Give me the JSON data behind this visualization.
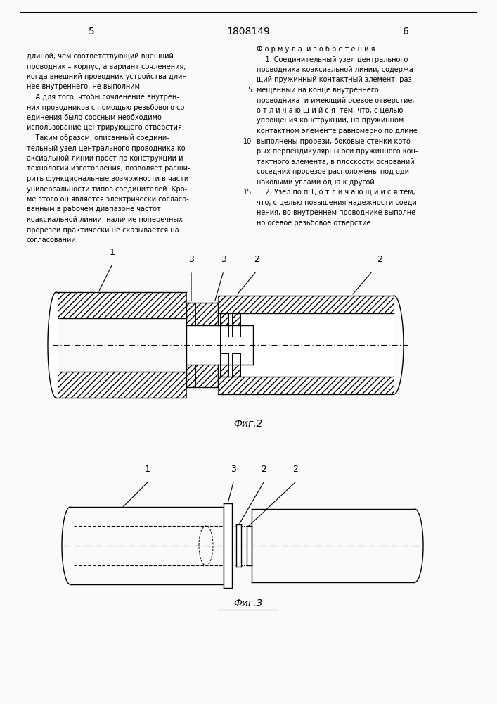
{
  "page_bg": "#fafaf8",
  "page_num_left": "5",
  "page_num_center": "1808149",
  "page_num_right": "6",
  "fig2_label": "Фиг.2",
  "fig3_label": "Фиг.3",
  "label1": "1",
  "label2": "2",
  "label3": "3",
  "text_left": [
    "длиной, чем соответствующий внешний",
    "проводник – корпус, а вариант сочленения,",
    "когда внешний проводник устройства длин‑",
    "нее внутреннего, не выполним.",
    "    А для того, чтобы сочленение внутрен‑",
    "них проводников с помощью резьбового со‑",
    "единения было соосным необходимо",
    "использование центрирующего отверстия.",
    "    Таким образом, описанный соедини‑",
    "тельный узел центрального проводника ко‑",
    "аксиальной линии прост по конструкции и",
    "технологии изготовления, позволяет расши‑",
    "рить функциональные возможности в части",
    "универсальности типов соединителей. Кро‑",
    "ме этого он является электрически согласо‑",
    "ванным в рабочем диапазоне частот",
    "коаксиальной линии, наличие поперечных",
    "прорезей практически не сказывается на",
    "согласовании."
  ],
  "text_right": [
    "Ф о р м у л а  и з о б р е т е н и я",
    "    1. Соединительный узел центрального",
    "проводника коаксиальной линии, содержа‑",
    "щий пружинный контактный элемент, раз‑",
    "мещенный на конце внутреннего",
    "проводника  и имеющий осевое отверстие,",
    "о т л и ч а ю щ и й с я  тем, что, с целью",
    "упрощения конструкции, на пружинном",
    "контактном элементе равномерно по длине",
    "выполнены прорези, боковые стенки кото‑",
    "рых перпендикулярны оси пружинного кон‑",
    "тактного элемента, в плоскости оснований",
    "соседних прорезов расположены под оди‑",
    "наковыми углами одна к другой.",
    "    2. Узел по п.1, о т л и ч а ю щ и й с я тем,",
    "что, с целью повышения надежности соеди‑",
    "нения, во внутреннем проводнике выполне‑",
    "но осевое резьбовое отверстие."
  ]
}
